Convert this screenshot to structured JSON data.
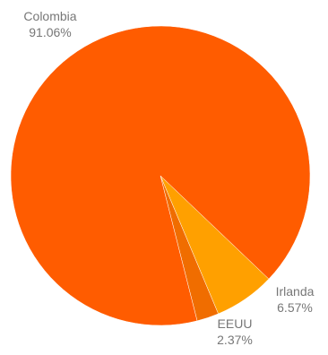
{
  "chart_data": {
    "type": "pie",
    "title": "",
    "slices": [
      {
        "label": "Colombia",
        "value": 91.06,
        "value_text": "91.06%",
        "color": "#ff5c00"
      },
      {
        "label": "EEUU",
        "value": 2.37,
        "value_text": "2.37%",
        "color": "#f06d00"
      },
      {
        "label": "Irlanda",
        "value": 6.57,
        "value_text": "6.57%",
        "color": "#ffa000"
      }
    ],
    "legend": "none",
    "labels": "outside"
  }
}
